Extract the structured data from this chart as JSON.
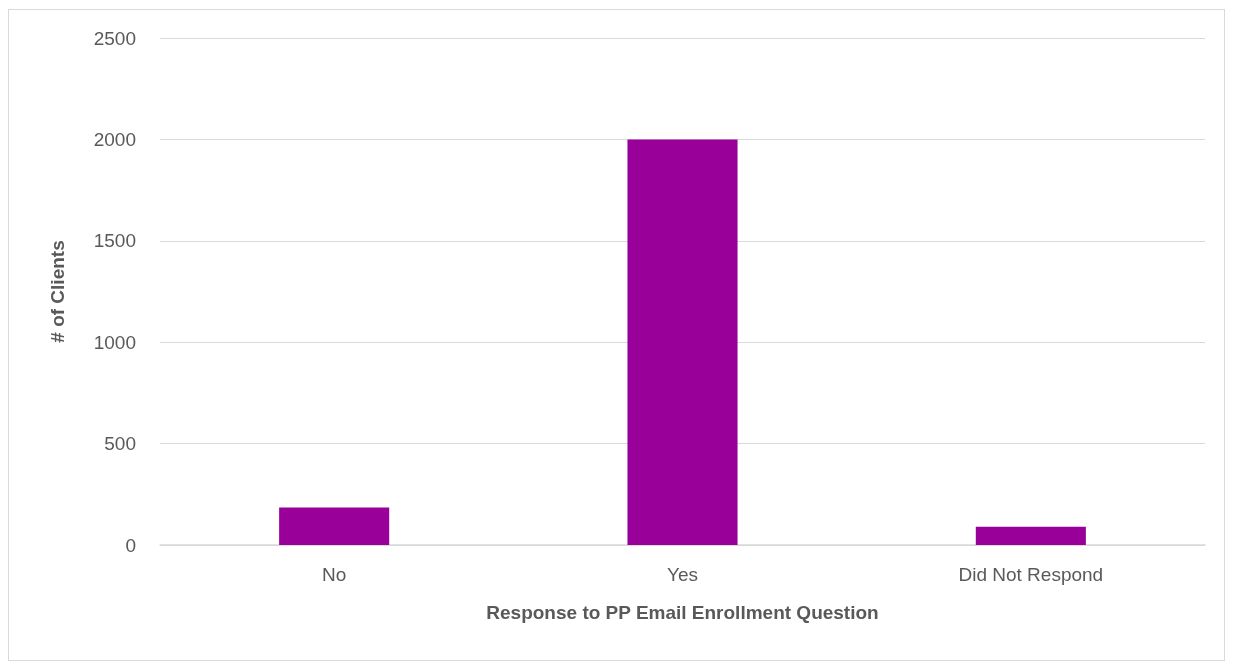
{
  "chart_data": {
    "type": "bar",
    "xlabel": "Response to PP Email Enrollment Question",
    "ylabel": "# of Clients",
    "categories": [
      "No",
      "Yes",
      "Did Not Respond"
    ],
    "values": [
      185,
      2000,
      90
    ],
    "color": "#990099",
    "ylim": [
      0,
      2500
    ],
    "yticks": [
      0,
      500,
      1000,
      1500,
      2000,
      2500
    ],
    "grid": "y"
  }
}
